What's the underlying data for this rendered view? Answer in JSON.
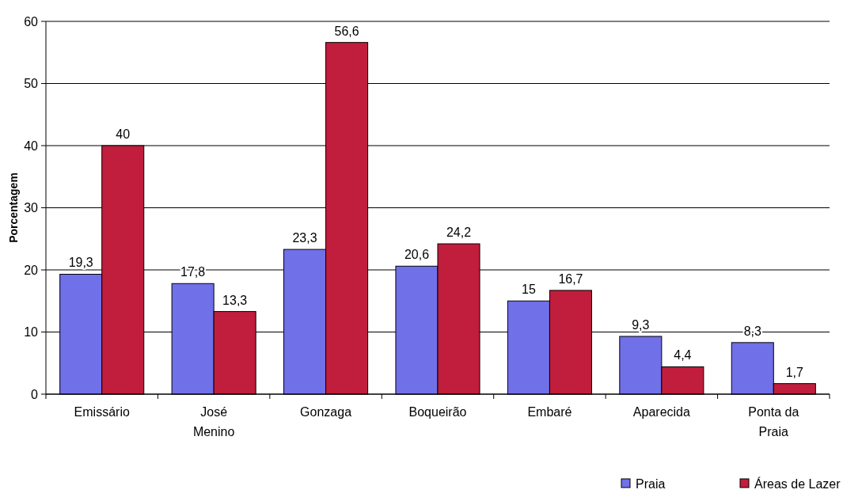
{
  "chart_data": {
    "type": "bar",
    "ylabel": "Porcentagem",
    "categories": [
      "Emissário",
      "José Menino",
      "Gonzaga",
      "Boqueirão",
      "Embaré",
      "Aparecida",
      "Ponta da Praia"
    ],
    "series": [
      {
        "name": "Praia",
        "color": "#7070e8",
        "values": [
          19.3,
          17.8,
          23.3,
          20.6,
          15,
          9.3,
          8.3
        ],
        "value_labels": [
          "19,3",
          "17,8",
          "23,3",
          "20,6",
          "15",
          "9,3",
          "8,3"
        ]
      },
      {
        "name": "Áreas de Lazer",
        "color": "#c01e3c",
        "values": [
          40,
          13.3,
          56.6,
          24.2,
          16.7,
          4.4,
          1.7
        ],
        "value_labels": [
          "40",
          "13,3",
          "56,6",
          "24,2",
          "16,7",
          "4,4",
          "1,7"
        ]
      }
    ],
    "ylim": [
      0,
      60
    ],
    "yticks": [
      0,
      10,
      20,
      30,
      40,
      50,
      60
    ],
    "grid": "y",
    "legend": "bottom right"
  }
}
